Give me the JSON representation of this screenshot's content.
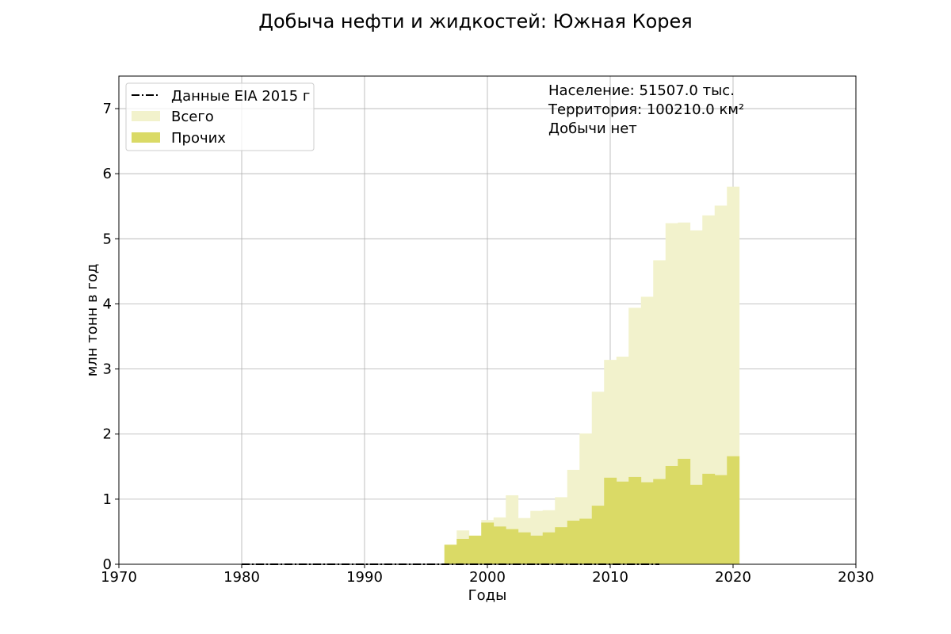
{
  "chart_data": {
    "type": "area",
    "title": "Добыча нефти и жидкостей: Южная Корея",
    "xlabel": "Годы",
    "ylabel": "млн тонн в год",
    "xlim": [
      1970,
      2030
    ],
    "ylim": [
      0,
      7.5
    ],
    "xticks": [
      1970,
      1980,
      1990,
      2000,
      2010,
      2020,
      2030
    ],
    "yticks": [
      0,
      1,
      2,
      3,
      4,
      5,
      6,
      7
    ],
    "grid": true,
    "legend_position": "top-left",
    "legend": [
      "Данные EIA 2015 г",
      "Всего",
      "Прочих"
    ],
    "annotations": [
      "Население: 51507.0 тыс.",
      "Территория: 100210.0 км²",
      "Добычи нет"
    ],
    "x": [
      1997,
      1998,
      1999,
      2000,
      2001,
      2002,
      2003,
      2004,
      2005,
      2006,
      2007,
      2008,
      2009,
      2010,
      2011,
      2012,
      2013,
      2014,
      2015,
      2016,
      2017,
      2018,
      2019,
      2020
    ],
    "series": [
      {
        "name": "Всего",
        "color": "#f2f2cc",
        "values": [
          0.3,
          0.52,
          0.28,
          0.68,
          0.72,
          1.06,
          0.71,
          0.82,
          0.83,
          1.03,
          1.45,
          2.01,
          2.65,
          3.14,
          3.19,
          3.94,
          4.11,
          4.67,
          5.24,
          5.25,
          5.13,
          5.36,
          5.51,
          5.8
        ]
      },
      {
        "name": "Прочих",
        "color": "#dada66",
        "values": [
          0.3,
          0.39,
          0.44,
          0.64,
          0.58,
          0.54,
          0.49,
          0.44,
          0.49,
          0.57,
          0.67,
          0.7,
          0.9,
          1.33,
          1.27,
          1.34,
          1.26,
          1.31,
          1.51,
          1.62,
          1.22,
          1.39,
          1.37,
          1.66
        ]
      },
      {
        "name": "Данные EIA 2015 г",
        "color": "#000000",
        "style": "dash-dot",
        "x": [
          1980,
          2014
        ],
        "values": [
          0,
          0
        ]
      }
    ]
  }
}
